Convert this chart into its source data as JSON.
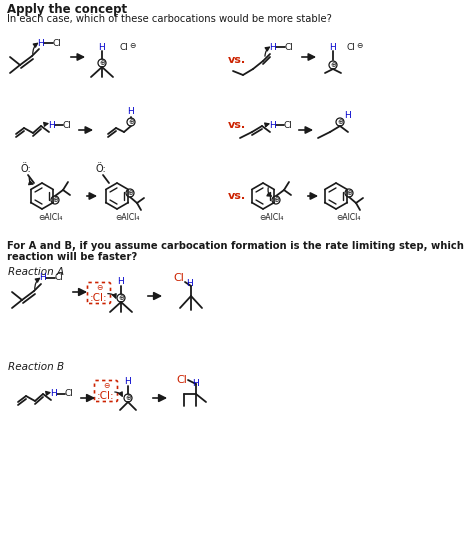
{
  "title": "Apply the concept",
  "subtitle": "In each case, which of these carbocations would be more stable?",
  "q2a": "For A and B, if you assume carbocation formation is the rate limiting step, which",
  "q2b": "reaction will be faster?",
  "rxn_a": "Reaction A",
  "rxn_b": "Reaction B",
  "blue": "#0000cc",
  "red": "#cc2200",
  "black": "#1a1a1a",
  "gray": "#555555",
  "bg": "#ffffff",
  "vs_color": "#cc2200"
}
